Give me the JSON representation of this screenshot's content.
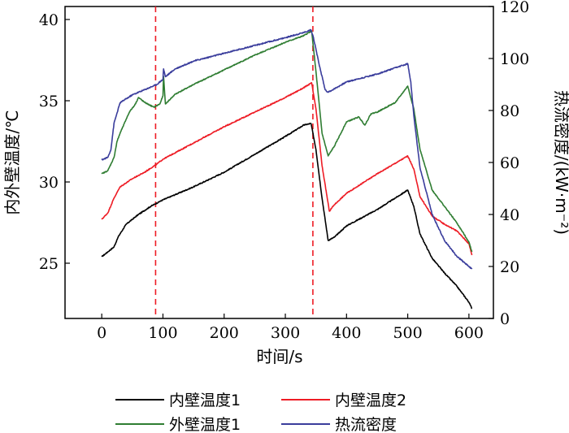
{
  "chart_data": {
    "type": "line",
    "xlabel": "时间/s",
    "ylabel_left": "内外壁温度/℃",
    "ylabel_right": "热流密度/(kW·m⁻²)",
    "x_ticks": [
      0,
      100,
      200,
      300,
      400,
      500,
      600
    ],
    "y_left_ticks": [
      25,
      30,
      35,
      40
    ],
    "y_right_ticks": [
      0,
      20,
      40,
      60,
      80,
      100,
      120
    ],
    "xlim": [
      -60,
      640
    ],
    "ylim_left": [
      21.6,
      40.8
    ],
    "ylim_right": [
      0,
      120
    ],
    "grid": false,
    "legend_position": "bottom",
    "vlines": [
      88,
      345
    ],
    "vline_color": "#ee1c25",
    "series": [
      {
        "name": "内壁温度1",
        "axis": "left",
        "color": "#000000",
        "x": [
          0,
          10,
          20,
          28,
          40,
          60,
          80,
          100,
          150,
          200,
          250,
          300,
          330,
          342,
          350,
          360,
          370,
          380,
          400,
          450,
          500,
          510,
          520,
          540,
          560,
          580,
          600,
          605
        ],
        "y": [
          25.4,
          25.7,
          26.0,
          26.7,
          27.4,
          28.0,
          28.5,
          28.9,
          29.7,
          30.6,
          31.7,
          32.8,
          33.5,
          33.6,
          32.0,
          29.0,
          26.4,
          26.6,
          27.3,
          28.3,
          29.5,
          28.5,
          26.8,
          25.3,
          24.4,
          23.6,
          22.6,
          22.2
        ]
      },
      {
        "name": "内壁温度2",
        "axis": "left",
        "color": "#ee1c25",
        "x": [
          0,
          10,
          20,
          30,
          50,
          70,
          90,
          100,
          150,
          200,
          250,
          300,
          330,
          343,
          350,
          360,
          372,
          380,
          400,
          450,
          500,
          510,
          520,
          540,
          560,
          580,
          600,
          605
        ],
        "y": [
          27.7,
          28.1,
          29.0,
          29.7,
          30.2,
          30.6,
          31.1,
          31.4,
          32.4,
          33.4,
          34.3,
          35.2,
          35.8,
          36.1,
          34.5,
          31.0,
          28.2,
          28.6,
          29.3,
          30.5,
          31.6,
          30.8,
          29.1,
          27.9,
          27.4,
          27.0,
          26.2,
          25.5
        ]
      },
      {
        "name": "外壁温度1",
        "axis": "left",
        "color": "#2f7d32",
        "x": [
          0,
          10,
          20,
          25,
          30,
          45,
          55,
          60,
          70,
          85,
          95,
          100,
          101,
          104,
          120,
          150,
          200,
          250,
          300,
          330,
          343,
          350,
          360,
          370,
          380,
          400,
          420,
          430,
          440,
          450,
          480,
          500,
          510,
          520,
          540,
          560,
          580,
          600,
          605
        ],
        "y": [
          30.5,
          30.7,
          31.5,
          32.5,
          33.0,
          34.3,
          34.8,
          35.2,
          34.9,
          34.6,
          34.8,
          35.3,
          36.5,
          34.8,
          35.4,
          36.0,
          36.9,
          37.8,
          38.6,
          39.0,
          39.3,
          36.8,
          33.0,
          31.6,
          32.2,
          33.7,
          34.0,
          33.5,
          34.2,
          34.3,
          34.9,
          35.9,
          34.5,
          32.0,
          29.5,
          28.5,
          27.5,
          26.3,
          25.7
        ]
      },
      {
        "name": "热流密度",
        "axis": "right",
        "color": "#3a3d9c",
        "x": [
          0,
          10,
          15,
          20,
          30,
          50,
          70,
          90,
          100,
          101,
          104,
          120,
          150,
          200,
          250,
          300,
          330,
          342,
          346,
          355,
          365,
          370,
          400,
          450,
          500,
          505,
          510,
          520,
          540,
          560,
          580,
          600,
          605
        ],
        "y": [
          61,
          62,
          65,
          75,
          83,
          86,
          88,
          90,
          92,
          96,
          93,
          96,
          99,
          102,
          105,
          108,
          110,
          111,
          108,
          98,
          88,
          87,
          91,
          94,
          98,
          91,
          78,
          58,
          40,
          30,
          24,
          20,
          19
        ]
      }
    ]
  }
}
